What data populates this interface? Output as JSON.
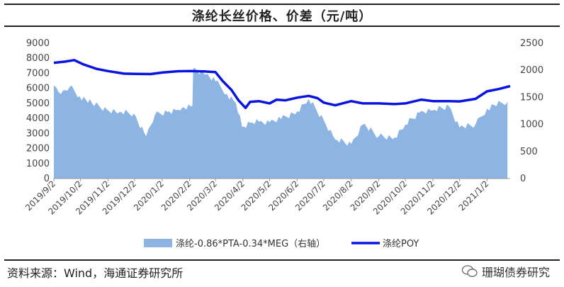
{
  "title": "涤纶长丝价格、价差（元/吨）",
  "source": "资料来源：Wind，海通证券研究所",
  "watermark": "珊瑚债券研究",
  "colors": {
    "spread": "#8eb4e3",
    "poy": "#0a14e0"
  },
  "chart_data": {
    "type": "area+line",
    "x_ticks": [
      "2019/9/2",
      "2019/10/2",
      "2019/11/2",
      "2019/12/2",
      "2020/1/2",
      "2020/2/2",
      "2020/3/2",
      "2020/4/2",
      "2020/5/2",
      "2020/6/2",
      "2020/7/2",
      "2020/8/2",
      "2020/9/2",
      "2020/10/2",
      "2020/11/2",
      "2020/12/2",
      "2021/1/2"
    ],
    "left_axis": {
      "min": 0,
      "max": 9000,
      "ticks": [
        0,
        1000,
        2000,
        3000,
        4000,
        5000,
        6000,
        7000,
        8000,
        9000
      ]
    },
    "right_axis": {
      "min": 0,
      "max": 2500,
      "ticks": [
        0,
        500,
        1000,
        1500,
        2000,
        2500
      ]
    },
    "series": [
      {
        "name": "涤纶-0.86*PTA-0.34*MEG（右轴）",
        "kind": "area",
        "axis": "right",
        "points": [
          [
            "2019/9/2",
            1720
          ],
          [
            "2019/9/10",
            1560
          ],
          [
            "2019/9/20",
            1700
          ],
          [
            "2019/10/1",
            1520
          ],
          [
            "2019/10/15",
            1390
          ],
          [
            "2019/11/1",
            1270
          ],
          [
            "2019/11/15",
            1230
          ],
          [
            "2019/12/1",
            1200
          ],
          [
            "2019/12/15",
            780
          ],
          [
            "2019/12/25",
            1180
          ],
          [
            "2020/1/10",
            1240
          ],
          [
            "2020/1/20",
            1270
          ],
          [
            "2020/1/25",
            1320
          ],
          [
            "2020/2/5",
            1340
          ],
          [
            "2020/2/6",
            2040
          ],
          [
            "2020/2/20",
            1920
          ],
          [
            "2020/3/2",
            1800
          ],
          [
            "2020/3/15",
            1560
          ],
          [
            "2020/3/25",
            1400
          ],
          [
            "2020/4/1",
            960
          ],
          [
            "2020/4/10",
            1030
          ],
          [
            "2020/4/20",
            1050
          ],
          [
            "2020/5/2",
            1040
          ],
          [
            "2020/5/15",
            1100
          ],
          [
            "2020/6/2",
            1240
          ],
          [
            "2020/6/15",
            1470
          ],
          [
            "2020/7/2",
            1080
          ],
          [
            "2020/7/15",
            720
          ],
          [
            "2020/8/2",
            640
          ],
          [
            "2020/8/15",
            1000
          ],
          [
            "2020/9/2",
            780
          ],
          [
            "2020/9/20",
            760
          ],
          [
            "2020/10/2",
            1000
          ],
          [
            "2020/10/20",
            1250
          ],
          [
            "2020/11/2",
            1260
          ],
          [
            "2020/11/20",
            1340
          ],
          [
            "2020/12/2",
            940
          ],
          [
            "2020/12/20",
            1000
          ],
          [
            "2021/1/2",
            1290
          ],
          [
            "2021/1/10",
            1360
          ],
          [
            "2021/1/25",
            1420
          ]
        ]
      },
      {
        "name": "涤纶POY",
        "kind": "line",
        "axis": "left",
        "points": [
          [
            "2019/9/2",
            7700
          ],
          [
            "2019/9/15",
            7780
          ],
          [
            "2019/9/25",
            7880
          ],
          [
            "2019/10/5",
            7600
          ],
          [
            "2019/10/20",
            7300
          ],
          [
            "2019/11/2",
            7150
          ],
          [
            "2019/11/20",
            6980
          ],
          [
            "2019/12/2",
            6960
          ],
          [
            "2019/12/20",
            6950
          ],
          [
            "2020/1/2",
            7050
          ],
          [
            "2020/1/20",
            7140
          ],
          [
            "2020/2/2",
            7150
          ],
          [
            "2020/2/20",
            7120
          ],
          [
            "2020/3/2",
            7080
          ],
          [
            "2020/3/10",
            6500
          ],
          [
            "2020/3/20",
            5900
          ],
          [
            "2020/3/28",
            5200
          ],
          [
            "2020/4/5",
            4700
          ],
          [
            "2020/4/10",
            5100
          ],
          [
            "2020/4/20",
            5150
          ],
          [
            "2020/5/2",
            5000
          ],
          [
            "2020/5/10",
            5250
          ],
          [
            "2020/5/20",
            5200
          ],
          [
            "2020/6/2",
            5380
          ],
          [
            "2020/6/15",
            5500
          ],
          [
            "2020/6/25",
            5350
          ],
          [
            "2020/7/2",
            5050
          ],
          [
            "2020/7/15",
            4870
          ],
          [
            "2020/8/2",
            5150
          ],
          [
            "2020/8/15",
            5000
          ],
          [
            "2020/9/2",
            5000
          ],
          [
            "2020/9/20",
            4950
          ],
          [
            "2020/10/2",
            5000
          ],
          [
            "2020/10/20",
            5250
          ],
          [
            "2020/11/2",
            5150
          ],
          [
            "2020/11/20",
            5150
          ],
          [
            "2020/12/2",
            5130
          ],
          [
            "2020/12/20",
            5300
          ],
          [
            "2021/1/2",
            5800
          ],
          [
            "2021/1/15",
            5950
          ],
          [
            "2021/1/28",
            6150
          ]
        ]
      }
    ],
    "legend_position": "bottom"
  }
}
